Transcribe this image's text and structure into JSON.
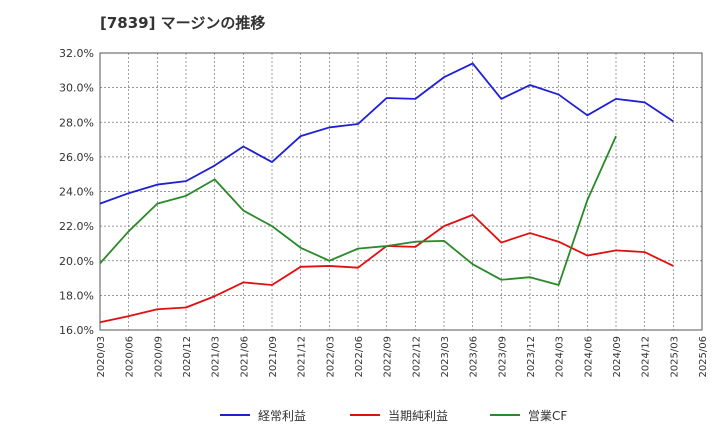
{
  "chart_data": {
    "type": "line",
    "title": "[7839]  マージンの推移",
    "x": [
      "2020/03",
      "2020/06",
      "2020/09",
      "2020/12",
      "2021/03",
      "2021/06",
      "2021/09",
      "2021/12",
      "2022/03",
      "2022/06",
      "2022/09",
      "2022/12",
      "2023/03",
      "2023/06",
      "2023/09",
      "2023/12",
      "2024/03",
      "2024/06",
      "2024/09",
      "2024/12",
      "2025/03",
      "2025/06"
    ],
    "ylim": [
      16.0,
      32.0
    ],
    "yticks": [
      "16.0%",
      "18.0%",
      "20.0%",
      "22.0%",
      "24.0%",
      "26.0%",
      "28.0%",
      "30.0%",
      "32.0%"
    ],
    "grid": true,
    "legend_position": "bottom",
    "series": [
      {
        "name": "経常利益",
        "color": "#1f1fd6",
        "values": [
          23.3,
          23.9,
          24.4,
          24.6,
          25.5,
          26.6,
          25.7,
          27.2,
          27.7,
          27.9,
          29.4,
          29.35,
          30.6,
          31.4,
          29.35,
          30.15,
          29.6,
          28.4,
          29.35,
          29.15,
          28.05,
          null
        ]
      },
      {
        "name": "当期純利益",
        "color": "#e01010",
        "values": [
          16.45,
          16.8,
          17.2,
          17.3,
          17.95,
          18.75,
          18.6,
          19.65,
          19.7,
          19.6,
          20.85,
          20.8,
          22.0,
          22.65,
          21.05,
          21.6,
          21.1,
          20.3,
          20.6,
          20.5,
          19.7,
          null
        ]
      },
      {
        "name": "営業CF",
        "color": "#2a8a2a",
        "values": [
          19.85,
          21.7,
          23.3,
          23.75,
          24.7,
          22.9,
          22.0,
          20.75,
          20.0,
          20.7,
          20.85,
          21.1,
          21.15,
          19.8,
          18.9,
          19.05,
          18.6,
          23.5,
          27.2,
          null,
          null,
          null
        ]
      }
    ]
  }
}
